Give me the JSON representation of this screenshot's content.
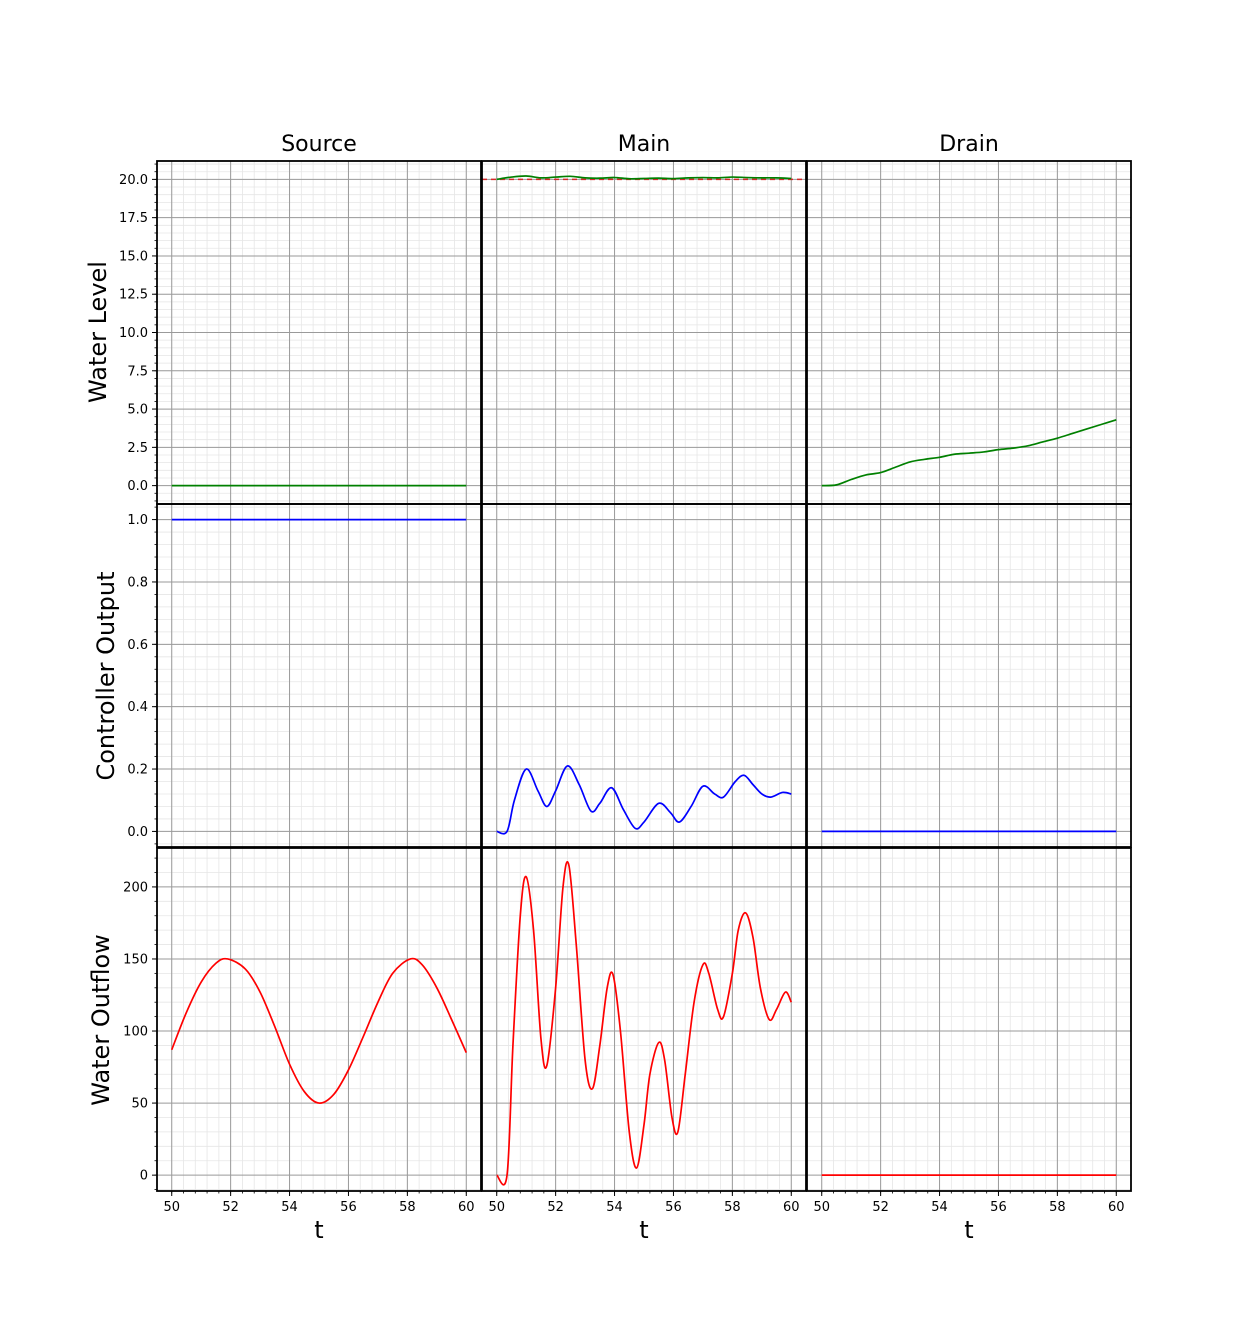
{
  "chart_data": {
    "type": "line",
    "columns": [
      "Source",
      "Main",
      "Drain"
    ],
    "rows": [
      {
        "ylabel": "Water Level",
        "ylim": [
          -1.2,
          21.2
        ],
        "yticks": [
          0.0,
          2.5,
          5.0,
          7.5,
          10.0,
          12.5,
          15.0,
          17.5,
          20.0
        ],
        "ytick_labels": [
          "0.0",
          "2.5",
          "5.0",
          "7.5",
          "10.0",
          "12.5",
          "15.0",
          "17.5",
          "20.0"
        ],
        "color": "#008000"
      },
      {
        "ylabel": "Controller Output",
        "ylim": [
          -0.05,
          1.05
        ],
        "yticks": [
          0.0,
          0.2,
          0.4,
          0.6,
          0.8,
          1.0
        ],
        "ytick_labels": [
          "0.0",
          "0.2",
          "0.4",
          "0.6",
          "0.8",
          "1.0"
        ],
        "color": "#0000ff"
      },
      {
        "ylabel": "Water Outflow",
        "ylim": [
          -11,
          227
        ],
        "yticks": [
          0,
          50,
          100,
          150,
          200
        ],
        "ytick_labels": [
          "0",
          "50",
          "100",
          "150",
          "200"
        ],
        "color": "#ff0000"
      }
    ],
    "xlabel": "t",
    "xlim": [
      49.5,
      60.5
    ],
    "xticks": [
      50,
      52,
      54,
      56,
      58,
      60
    ],
    "xtick_labels": [
      "50",
      "52",
      "54",
      "56",
      "58",
      "60"
    ],
    "grid": true,
    "setpoint": {
      "panel": "Main / Water Level",
      "value": 20.0,
      "style": "dashed",
      "color": "#d62728"
    },
    "series": [
      {
        "panel": [
          0,
          0
        ],
        "x": [
          50,
          60
        ],
        "y": [
          0,
          0
        ]
      },
      {
        "panel": [
          0,
          1
        ],
        "x": [
          50,
          50.5,
          51,
          51.5,
          52,
          52.5,
          53,
          53.5,
          54,
          54.5,
          55,
          55.5,
          56,
          56.5,
          57,
          57.5,
          58,
          58.5,
          59,
          59.5,
          60
        ],
        "y": [
          20.0,
          20.15,
          20.22,
          20.1,
          20.15,
          20.2,
          20.1,
          20.08,
          20.12,
          20.04,
          20.06,
          20.08,
          20.05,
          20.1,
          20.12,
          20.1,
          20.15,
          20.12,
          20.1,
          20.1,
          20.06
        ]
      },
      {
        "panel": [
          0,
          2
        ],
        "x": [
          50,
          50.5,
          51,
          51.5,
          52,
          52.5,
          53,
          53.5,
          54,
          54.5,
          55,
          55.5,
          56,
          56.5,
          57,
          57.5,
          58,
          58.5,
          59,
          59.5,
          60
        ],
        "y": [
          0.0,
          0.05,
          0.4,
          0.7,
          0.85,
          1.2,
          1.55,
          1.72,
          1.85,
          2.05,
          2.12,
          2.2,
          2.35,
          2.45,
          2.6,
          2.85,
          3.1,
          3.4,
          3.7,
          4.0,
          4.3
        ]
      },
      {
        "panel": [
          1,
          0
        ],
        "x": [
          50,
          60
        ],
        "y": [
          1.0,
          1.0
        ]
      },
      {
        "panel": [
          1,
          1
        ],
        "x": [
          50,
          50.35,
          50.6,
          51.0,
          51.4,
          51.7,
          52.0,
          52.4,
          52.8,
          53.2,
          53.5,
          53.9,
          54.3,
          54.7,
          55.0,
          55.5,
          55.9,
          56.2,
          56.6,
          57.0,
          57.4,
          57.7,
          58.1,
          58.4,
          58.7,
          59.0,
          59.3,
          59.7,
          60.0
        ],
        "y": [
          0.0,
          0.0,
          0.1,
          0.2,
          0.13,
          0.08,
          0.13,
          0.21,
          0.15,
          0.065,
          0.09,
          0.14,
          0.07,
          0.01,
          0.03,
          0.09,
          0.06,
          0.03,
          0.08,
          0.145,
          0.12,
          0.11,
          0.16,
          0.18,
          0.15,
          0.12,
          0.11,
          0.125,
          0.12
        ]
      },
      {
        "panel": [
          1,
          2
        ],
        "x": [
          50,
          60
        ],
        "y": [
          0.0,
          0.0
        ]
      },
      {
        "panel": [
          2,
          0
        ],
        "x": [
          50,
          50.5,
          51,
          51.5,
          51.9,
          52.5,
          53,
          53.5,
          54,
          54.5,
          55,
          55.5,
          56,
          56.5,
          57,
          57.5,
          58.1,
          58.5,
          59,
          59.5,
          60
        ],
        "y": [
          87,
          113,
          134,
          147,
          150,
          143,
          127,
          103,
          77,
          58,
          50,
          56,
          73,
          96,
          120,
          140,
          150,
          146,
          130,
          108,
          85
        ]
      },
      {
        "panel": [
          2,
          1
        ],
        "x": [
          50,
          50.35,
          50.55,
          50.8,
          51.0,
          51.25,
          51.5,
          51.7,
          52.0,
          52.25,
          52.45,
          52.7,
          53.0,
          53.25,
          53.5,
          53.75,
          53.95,
          54.2,
          54.5,
          54.75,
          55.0,
          55.2,
          55.5,
          55.7,
          55.95,
          56.15,
          56.4,
          56.7,
          57.0,
          57.2,
          57.5,
          57.7,
          58.0,
          58.2,
          58.45,
          58.7,
          58.95,
          59.25,
          59.5,
          59.8,
          60.0
        ],
        "y": [
          0,
          0,
          90,
          180,
          207,
          170,
          95,
          76,
          130,
          200,
          215,
          160,
          80,
          60,
          90,
          130,
          139,
          100,
          30,
          5,
          35,
          70,
          92,
          80,
          40,
          30,
          70,
          120,
          146,
          140,
          115,
          110,
          140,
          170,
          182,
          165,
          130,
          108,
          115,
          127,
          120
        ]
      },
      {
        "panel": [
          2,
          2
        ],
        "x": [
          50,
          60
        ],
        "y": [
          0,
          0
        ]
      }
    ]
  }
}
